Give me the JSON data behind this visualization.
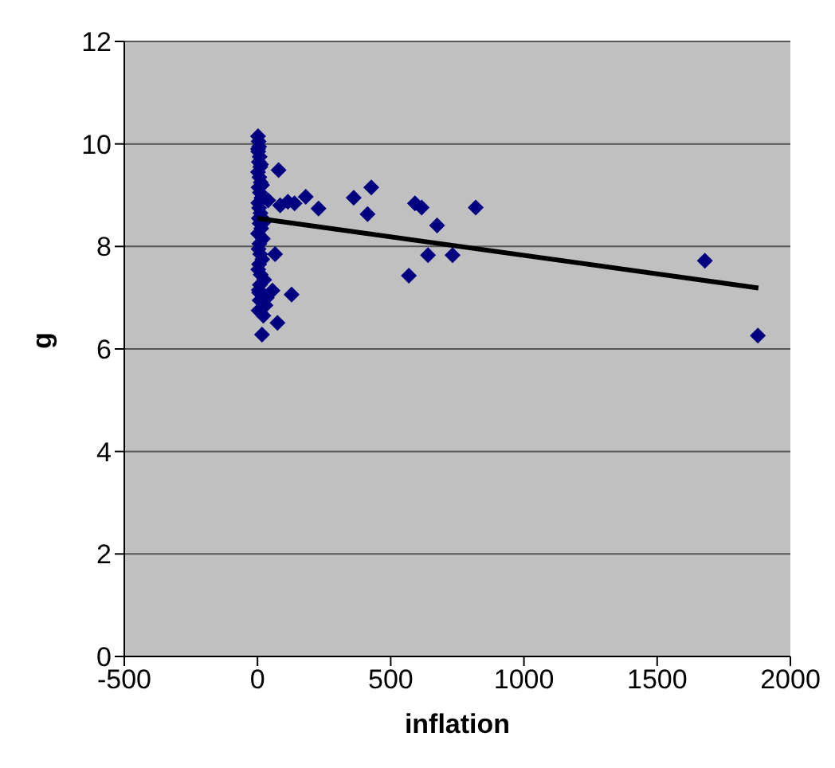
{
  "chart_data": {
    "type": "scatter",
    "xlabel": "inflation",
    "ylabel": "g",
    "xlim": [
      -500,
      2000
    ],
    "xticks": [
      -500,
      0,
      500,
      1000,
      1500,
      2000
    ],
    "ylim": [
      0,
      12
    ],
    "yticks": [
      0,
      2,
      4,
      6,
      8,
      10,
      12
    ],
    "grid": "y",
    "legend": false,
    "series": [
      {
        "marker": "diamond",
        "color": "#000080",
        "x": [
          2,
          4,
          6,
          3,
          8,
          5,
          10,
          2,
          7,
          12,
          4,
          9,
          15,
          3,
          6,
          11,
          5,
          8,
          14,
          2,
          20,
          7,
          4,
          10,
          18,
          6,
          3,
          12,
          25,
          9,
          5,
          8,
          30,
          4,
          22,
          6,
          35,
          2,
          13,
          40,
          17,
          28,
          17,
          56,
          66,
          75,
          79,
          85,
          114,
          128,
          139,
          181,
          229,
          361,
          413,
          427,
          568,
          591,
          616,
          640,
          674,
          732,
          819,
          1679,
          1878
        ],
        "values": [
          10.15,
          10.05,
          9.95,
          9.85,
          9.75,
          9.65,
          9.55,
          9.45,
          9.35,
          9.25,
          9.15,
          9.05,
          8.95,
          8.85,
          8.75,
          8.65,
          8.55,
          8.45,
          8.35,
          8.25,
          8.15,
          8.05,
          7.95,
          7.85,
          7.75,
          7.65,
          7.55,
          7.45,
          7.35,
          7.25,
          7.15,
          6.95,
          6.85,
          6.75,
          6.65,
          7.1,
          7.0,
          9.9,
          9.6,
          8.9,
          9.2,
          8.5,
          6.28,
          7.14,
          7.85,
          6.51,
          9.49,
          8.8,
          8.87,
          7.06,
          8.84,
          8.97,
          8.74,
          8.95,
          8.63,
          9.15,
          7.43,
          8.84,
          8.76,
          7.83,
          8.41,
          7.83,
          8.76,
          7.72,
          6.26
        ]
      },
      {
        "type": "line",
        "marker": "none",
        "color": "#000000",
        "x": [
          0,
          1880
        ],
        "values": [
          8.55,
          7.19
        ]
      }
    ]
  }
}
